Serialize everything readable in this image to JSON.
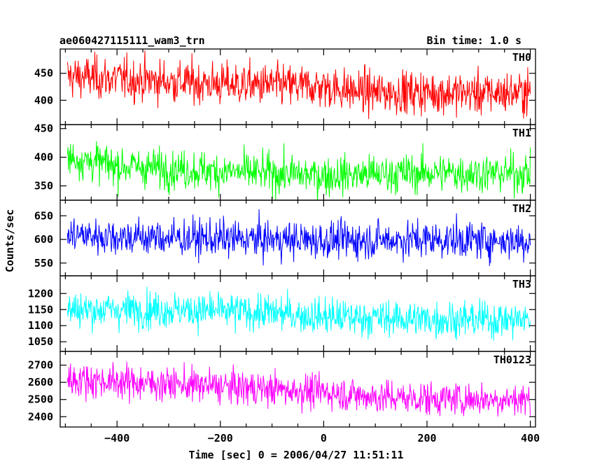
{
  "chart_data": {
    "type": "line",
    "title": "ae060427115111_wam3_trn",
    "bin_time_label": "Bin time: 1.0 s",
    "xlabel": "Time [sec] 0 = 2006/04/27 11:51:11",
    "ylabel": "Counts/sec",
    "xlim": [
      -510,
      410
    ],
    "xticks": [
      -400,
      -200,
      0,
      200,
      400
    ],
    "xtick_labels": [
      "−400",
      "−200",
      "0",
      "200",
      "400"
    ],
    "panels": [
      {
        "name": "TH0",
        "color": "#ff0000",
        "ylim": [
          355,
          495
        ],
        "yticks": [
          400,
          450
        ],
        "ytick_labels": [
          "400",
          "450"
        ],
        "points": [
          [
            -510,
            445
          ],
          [
            -400,
            440
          ],
          [
            -300,
            435
          ],
          [
            -200,
            430
          ],
          [
            -100,
            428
          ],
          [
            0,
            425
          ],
          [
            50,
            418
          ],
          [
            100,
            415
          ],
          [
            200,
            415
          ],
          [
            300,
            413
          ],
          [
            400,
            415
          ]
        ],
        "noise": 28
      },
      {
        "name": "TH1",
        "color": "#00ff00",
        "ylim": [
          325,
          457
        ],
        "yticks": [
          350,
          400,
          450
        ],
        "ytick_labels": [
          "350",
          "400",
          "450"
        ],
        "points": [
          [
            -510,
            402
          ],
          [
            -400,
            385
          ],
          [
            -200,
            375
          ],
          [
            0,
            368
          ],
          [
            200,
            373
          ],
          [
            400,
            372
          ]
        ],
        "noise": 24
      },
      {
        "name": "TH2",
        "color": "#0000ff",
        "ylim": [
          523,
          683
        ],
        "yticks": [
          550,
          600,
          650
        ],
        "ytick_labels": [
          "550",
          "600",
          "650"
        ],
        "points": [
          [
            -510,
            610
          ],
          [
            -300,
            603
          ],
          [
            0,
            598
          ],
          [
            200,
            600
          ],
          [
            400,
            597
          ]
        ],
        "noise": 28
      },
      {
        "name": "TH3",
        "color": "#00ffff",
        "ylim": [
          1020,
          1255
        ],
        "yticks": [
          1050,
          1100,
          1150,
          1200
        ],
        "ytick_labels": [
          "1050",
          "1100",
          "1150",
          "1200"
        ],
        "points": [
          [
            -510,
            1150
          ],
          [
            -300,
            1150
          ],
          [
            -100,
            1140
          ],
          [
            0,
            1128
          ],
          [
            200,
            1120
          ],
          [
            400,
            1118
          ]
        ],
        "noise": 40
      },
      {
        "name": "TH0123",
        "color": "#ff00ff",
        "ylim": [
          2340,
          2780
        ],
        "yticks": [
          2400,
          2500,
          2600,
          2700
        ],
        "ytick_labels": [
          "2400",
          "2500",
          "2600",
          "2700"
        ],
        "points": [
          [
            -510,
            2620
          ],
          [
            -300,
            2590
          ],
          [
            -100,
            2560
          ],
          [
            0,
            2545
          ],
          [
            100,
            2515
          ],
          [
            200,
            2505
          ],
          [
            400,
            2500
          ]
        ],
        "noise": 70
      }
    ]
  }
}
